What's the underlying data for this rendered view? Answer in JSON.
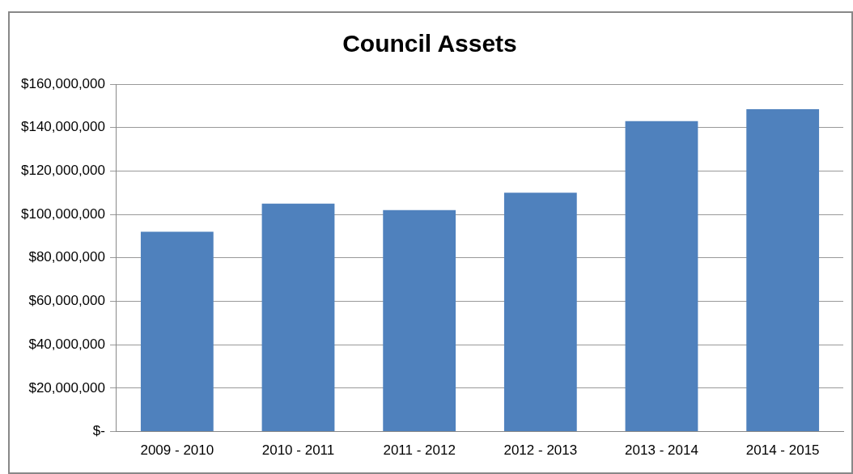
{
  "chart_data": {
    "type": "bar",
    "title": "Council Assets",
    "categories": [
      "2009 - 2010",
      "2010 - 2011",
      "2011 - 2012",
      "2012 - 2013",
      "2013 - 2014",
      "2014 - 2015"
    ],
    "values": [
      92000000,
      105000000,
      102000000,
      110000000,
      143000000,
      148500000
    ],
    "color": "#4f81bd",
    "ylim": [
      0,
      160000000
    ],
    "yticks": [
      {
        "value": 0,
        "label": "$-"
      },
      {
        "value": 20000000,
        "label": "$20,000,000"
      },
      {
        "value": 40000000,
        "label": "$40,000,000"
      },
      {
        "value": 60000000,
        "label": "$60,000,000"
      },
      {
        "value": 80000000,
        "label": "$80,000,000"
      },
      {
        "value": 100000000,
        "label": "$100,000,000"
      },
      {
        "value": 120000000,
        "label": "$120,000,000"
      },
      {
        "value": 140000000,
        "label": "$140,000,000"
      },
      {
        "value": 160000000,
        "label": "$160,000,000"
      }
    ],
    "grid": "y",
    "legend": false
  }
}
